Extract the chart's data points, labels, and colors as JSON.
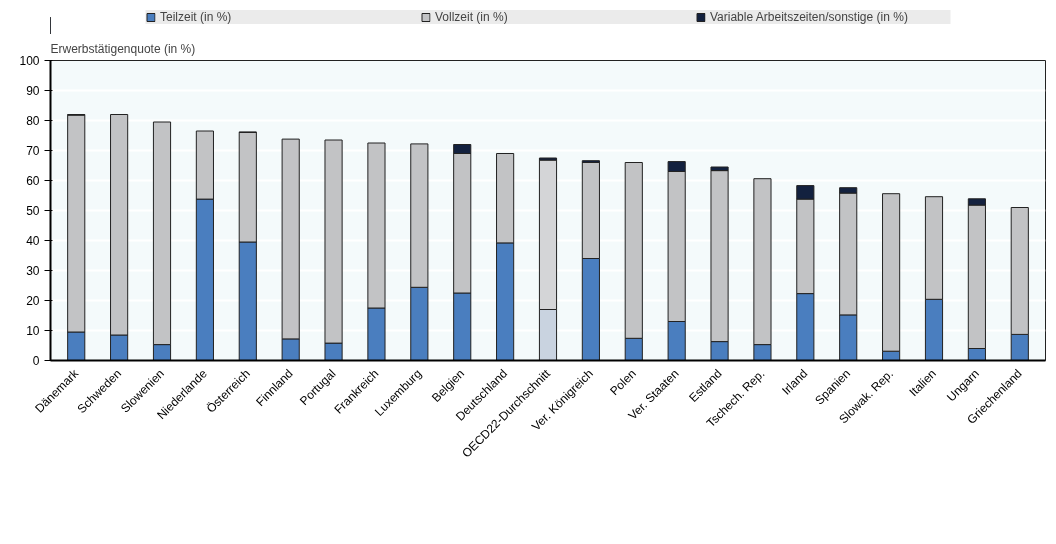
{
  "chart_data": {
    "type": "bar",
    "stacked": true,
    "ylabel": "Erwerbstätigenquote (in %)",
    "categories": [
      "Dänemark",
      "Schweden",
      "Slowenien",
      "Niederlande",
      "Österreich",
      "Finnland",
      "Portugal",
      "Frankreich",
      "Luxemburg",
      "Belgien",
      "Deutschland",
      "OECD22-Durchschnitt",
      "Ver. Königreich",
      "Polen",
      "Ver. Staaten",
      "Estland",
      "Tschech. Rep.",
      "Irland",
      "Spanien",
      "Slowak. Rep.",
      "Italien",
      "Ungarn",
      "Griechenland"
    ],
    "series": [
      {
        "name": "Teilzeit (in %)",
        "color": "#4a7ebf",
        "colors": [
          "#4a7ebf",
          "#4a7ebf",
          "#4a7ebf",
          "#4a7ebf",
          "#4a7ebf",
          "#4a7ebf",
          "#4a7ebf",
          "#4a7ebf",
          "#4a7ebf",
          "#4a7ebf",
          "#4a7ebf",
          "#c9d3e0",
          "#4a7ebf",
          "#4a7ebf",
          "#4a7ebf",
          "#4a7ebf",
          "#4a7ebf",
          "#4a7ebf",
          "#4a7ebf",
          "#4a7ebf",
          "#4a7ebf",
          "#4a7ebf",
          "#4a7ebf"
        ],
        "values": [
          9.5,
          8.5,
          5.3,
          53.8,
          39.5,
          7.2,
          5.8,
          17.5,
          24.4,
          22.5,
          39.2,
          17,
          34,
          7.4,
          13,
          6.3,
          5.3,
          22.3,
          15.2,
          3.1,
          20.4,
          4,
          8.7
        ]
      },
      {
        "name": "Vollzeit (in %)",
        "color": "#c2c3c5",
        "colors": [
          "#c2c3c5",
          "#c2c3c5",
          "#c2c3c5",
          "#c2c3c5",
          "#c2c3c5",
          "#c2c3c5",
          "#c2c3c5",
          "#c2c3c5",
          "#c2c3c5",
          "#c2c3c5",
          "#c2c3c5",
          "#d4d5d7",
          "#c2c3c5",
          "#c2c3c5",
          "#c2c3c5",
          "#c2c3c5",
          "#c2c3c5",
          "#c2c3c5",
          "#c2c3c5",
          "#c2c3c5",
          "#c2c3c5",
          "#c2c3c5",
          "#c2c3c5"
        ],
        "values": [
          72.3,
          73.5,
          74.2,
          22.7,
          36.5,
          66.6,
          67.7,
          55,
          47.8,
          46.5,
          29.8,
          49.8,
          32,
          58.6,
          50,
          57,
          55.3,
          31.5,
          40.6,
          52.5,
          34.2,
          47.8,
          42.3
        ]
      },
      {
        "name": "Variable Arbeitszeiten/sonstige (in %)",
        "color": "#13213f",
        "values": [
          0.2,
          0,
          0,
          0,
          0.2,
          0,
          0,
          0,
          0,
          3,
          0,
          0.7,
          0.6,
          0,
          3.3,
          1.2,
          0,
          4.5,
          1.8,
          0,
          0,
          2.1,
          0
        ]
      }
    ],
    "ylim": [
      0,
      100
    ],
    "yticks": [
      0,
      10,
      20,
      30,
      40,
      50,
      60,
      70,
      80,
      90,
      100
    ],
    "grid": "y",
    "legend": "top"
  }
}
